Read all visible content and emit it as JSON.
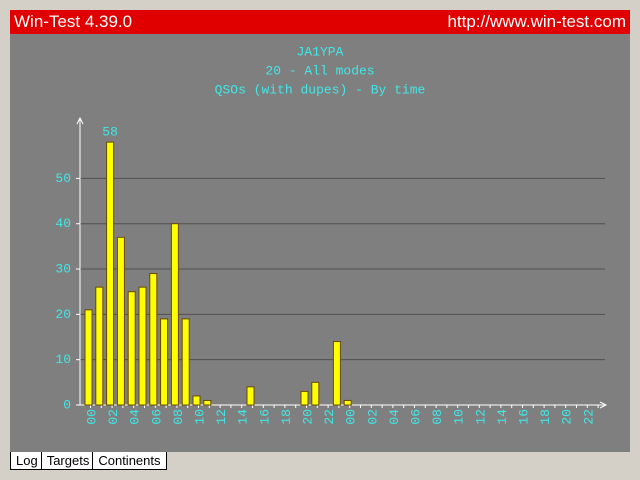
{
  "window": {
    "title": "Win-Test 4.39.0",
    "url": "http://www.win-test.com"
  },
  "tabs": [
    "Log",
    "Targets",
    "Continents"
  ],
  "chart_data": {
    "type": "bar",
    "title": "JA1YPA",
    "subtitle": "20 - All modes",
    "caption": "QSOs (with dupes) - By time",
    "categories": [
      "00",
      null,
      "02",
      null,
      "04",
      null,
      "06",
      null,
      "08",
      null,
      "10",
      null,
      "12",
      null,
      "14",
      null,
      "16",
      null,
      "18",
      null,
      "20",
      null,
      "22",
      null,
      "00",
      null,
      "02",
      null,
      "04",
      null,
      "06",
      null,
      "08",
      null,
      "10",
      null,
      "12",
      null,
      "14",
      null,
      "16",
      null,
      "18",
      null,
      "20",
      null,
      "22",
      null
    ],
    "values": [
      21,
      26,
      58,
      37,
      25,
      26,
      29,
      19,
      40,
      19,
      2,
      1,
      0,
      0,
      0,
      4,
      0,
      0,
      0,
      0,
      3,
      5,
      0,
      14,
      1,
      0,
      0,
      0,
      0,
      0,
      0,
      0,
      0,
      0,
      0,
      0,
      0,
      0,
      0,
      0,
      0,
      0,
      0,
      0,
      0,
      0,
      0,
      0
    ],
    "labeled_value_index": 2,
    "color": "#ffff00",
    "ylim": [
      0,
      62
    ],
    "yticks": [
      0,
      10,
      20,
      30,
      40,
      50
    ],
    "grid": true
  }
}
